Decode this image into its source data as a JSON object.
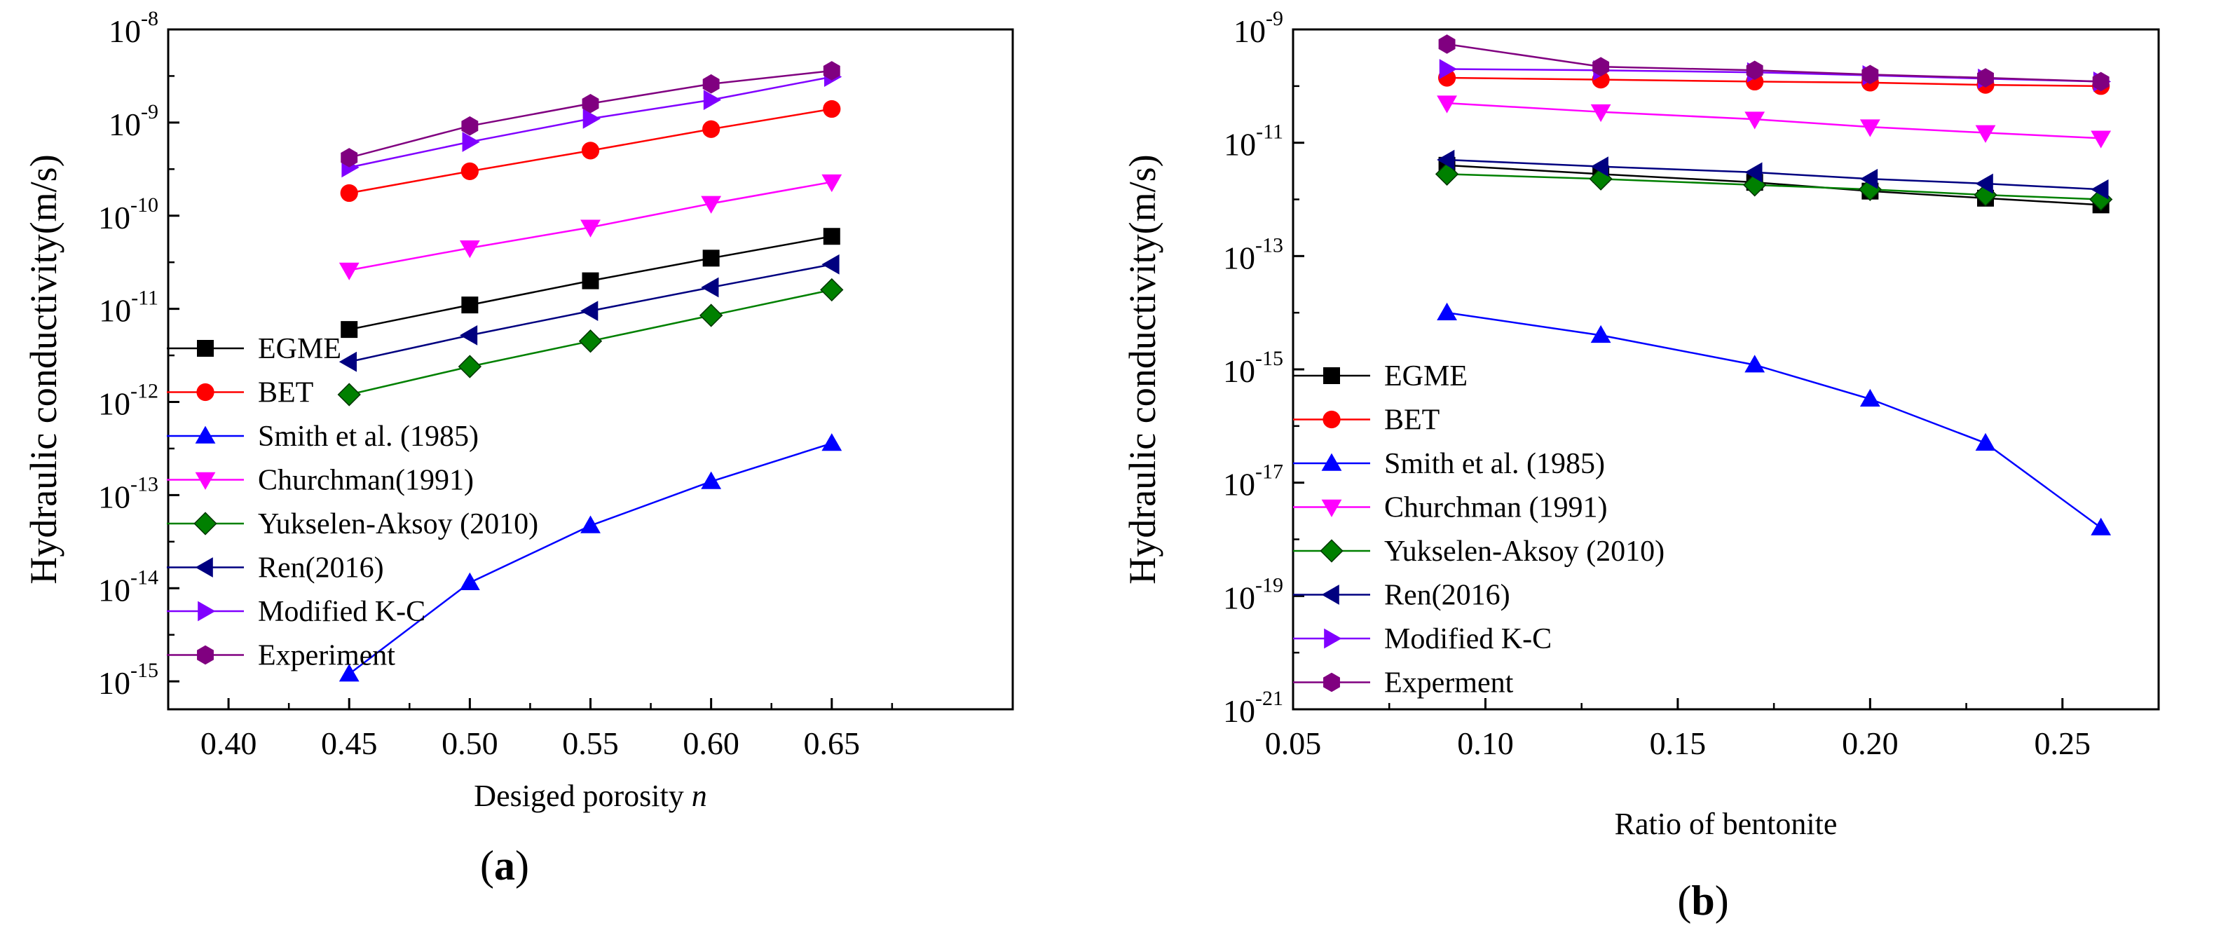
{
  "chart_data": [
    {
      "panel": "(a)",
      "panel_letter": "a",
      "type": "line",
      "yscale": "log",
      "xlabel_text": "Desiged porosity ",
      "xlabel_var": "n",
      "ylabel": "Hydraulic conductivity(m/s)",
      "xlim": [
        0.375,
        0.725
      ],
      "ylim_exp": [
        -15.3,
        -8
      ],
      "x_ticks": [
        0.4,
        0.45,
        0.5,
        0.55,
        0.6,
        0.65
      ],
      "x_tick_labels": [
        "0.40",
        "0.45",
        "0.50",
        "0.55",
        "0.60",
        "0.65"
      ],
      "y_tick_exps": [
        -15,
        -14,
        -13,
        -12,
        -11,
        -10,
        -9,
        -8
      ],
      "y_tick_labels": [
        "-15",
        "-14",
        "-13",
        "-12",
        "-11",
        "-10",
        "-9",
        "-8"
      ],
      "y_tick_base": "10",
      "x": [
        0.45,
        0.5,
        0.55,
        0.6,
        0.65
      ],
      "legend_position": "left",
      "series": [
        {
          "name": "EGME",
          "color": "#000000",
          "marker": "square",
          "values": [
            6e-12,
            1.1e-11,
            2e-11,
            3.5e-11,
            6e-11
          ]
        },
        {
          "name": "BET",
          "color": "#ff0000",
          "marker": "circle",
          "values": [
            1.75e-10,
            3e-10,
            5e-10,
            8.5e-10,
            1.4e-09
          ]
        },
        {
          "name": "Smith et al. (1985)",
          "color": "#0000ff",
          "marker": "triangle-up",
          "values": [
            1.2e-15,
            1.15e-14,
            4.7e-14,
            1.4e-13,
            3.6e-13
          ]
        },
        {
          "name": "Churchman(1991)",
          "color": "#ff00ff",
          "marker": "triangle-down",
          "values": [
            2.6e-11,
            4.5e-11,
            7.5e-11,
            1.35e-10,
            2.3e-10
          ]
        },
        {
          "name": "Yukselen-Aksoy (2010)",
          "color": "#008000",
          "marker": "diamond",
          "values": [
            1.2e-12,
            2.4e-12,
            4.5e-12,
            8.5e-12,
            1.6e-11
          ]
        },
        {
          "name": "Ren(2016)",
          "color": "#000080",
          "marker": "triangle-left",
          "values": [
            2.7e-12,
            5.2e-12,
            9.5e-12,
            1.7e-11,
            3e-11
          ]
        },
        {
          "name": "Modified K-C",
          "color": "#8000ff",
          "marker": "triangle-right",
          "values": [
            3.3e-10,
            6.2e-10,
            1.1e-09,
            1.75e-09,
            3.1e-09
          ]
        },
        {
          "name": "Experiment",
          "color": "#800080",
          "marker": "hexagon",
          "values": [
            4.2e-10,
            9.2e-10,
            1.6e-09,
            2.6e-09,
            3.6e-09
          ]
        }
      ]
    },
    {
      "panel": "(b)",
      "panel_letter": "b",
      "type": "line",
      "yscale": "log",
      "xlabel_text": "Ratio of bentonite",
      "xlabel_var": "",
      "ylabel": "Hydraulic conductivity(m/s)",
      "xlim": [
        0.05,
        0.275
      ],
      "ylim_exp": [
        -21,
        -9
      ],
      "x_ticks": [
        0.05,
        0.1,
        0.15,
        0.2,
        0.25
      ],
      "x_tick_labels": [
        "0.05",
        "0.10",
        "0.15",
        "0.20",
        "0.25"
      ],
      "y_tick_exps": [
        -21,
        -19,
        -17,
        -15,
        -13,
        -11,
        -9
      ],
      "y_tick_labels": [
        "-21",
        "-19",
        "-17",
        "-15",
        "-13",
        "-11",
        "-9"
      ],
      "y_tick_base": "10",
      "x": [
        0.09,
        0.13,
        0.17,
        0.2,
        0.23,
        0.26
      ],
      "legend_position": "left",
      "series": [
        {
          "name": "EGME",
          "color": "#000000",
          "marker": "square",
          "values": [
            4e-12,
            2.8e-12,
            2e-12,
            1.4e-12,
            1.05e-12,
            8e-13
          ]
        },
        {
          "name": "BET",
          "color": "#ff0000",
          "marker": "circle",
          "values": [
            1.4e-10,
            1.3e-10,
            1.2e-10,
            1.15e-10,
            1.05e-10,
            1e-10
          ]
        },
        {
          "name": "Smith et al. (1985)",
          "color": "#0000ff",
          "marker": "triangle-up",
          "values": [
            1e-14,
            4e-15,
            1.2e-15,
            3e-16,
            5e-17,
            1.6e-18
          ]
        },
        {
          "name": "Churchman  (1991)",
          "color": "#ff00ff",
          "marker": "triangle-down",
          "values": [
            5e-11,
            3.5e-11,
            2.6e-11,
            1.9e-11,
            1.5e-11,
            1.2e-11
          ]
        },
        {
          "name": "Yukselen-Aksoy (2010)",
          "color": "#008000",
          "marker": "diamond",
          "values": [
            2.8e-12,
            2.3e-12,
            1.8e-12,
            1.5e-12,
            1.2e-12,
            1e-12
          ]
        },
        {
          "name": "Ren(2016)",
          "color": "#000080",
          "marker": "triangle-left",
          "values": [
            5e-12,
            3.8e-12,
            3e-12,
            2.3e-12,
            1.9e-12,
            1.5e-12
          ]
        },
        {
          "name": "Modified K-C",
          "color": "#8000ff",
          "marker": "triangle-right",
          "values": [
            2e-10,
            1.9e-10,
            1.75e-10,
            1.55e-10,
            1.35e-10,
            1.2e-10
          ]
        },
        {
          "name": "Experment",
          "color": "#800080",
          "marker": "hexagon",
          "values": [
            5.5e-10,
            2.2e-10,
            1.9e-10,
            1.6e-10,
            1.4e-10,
            1.2e-10
          ]
        }
      ]
    }
  ]
}
